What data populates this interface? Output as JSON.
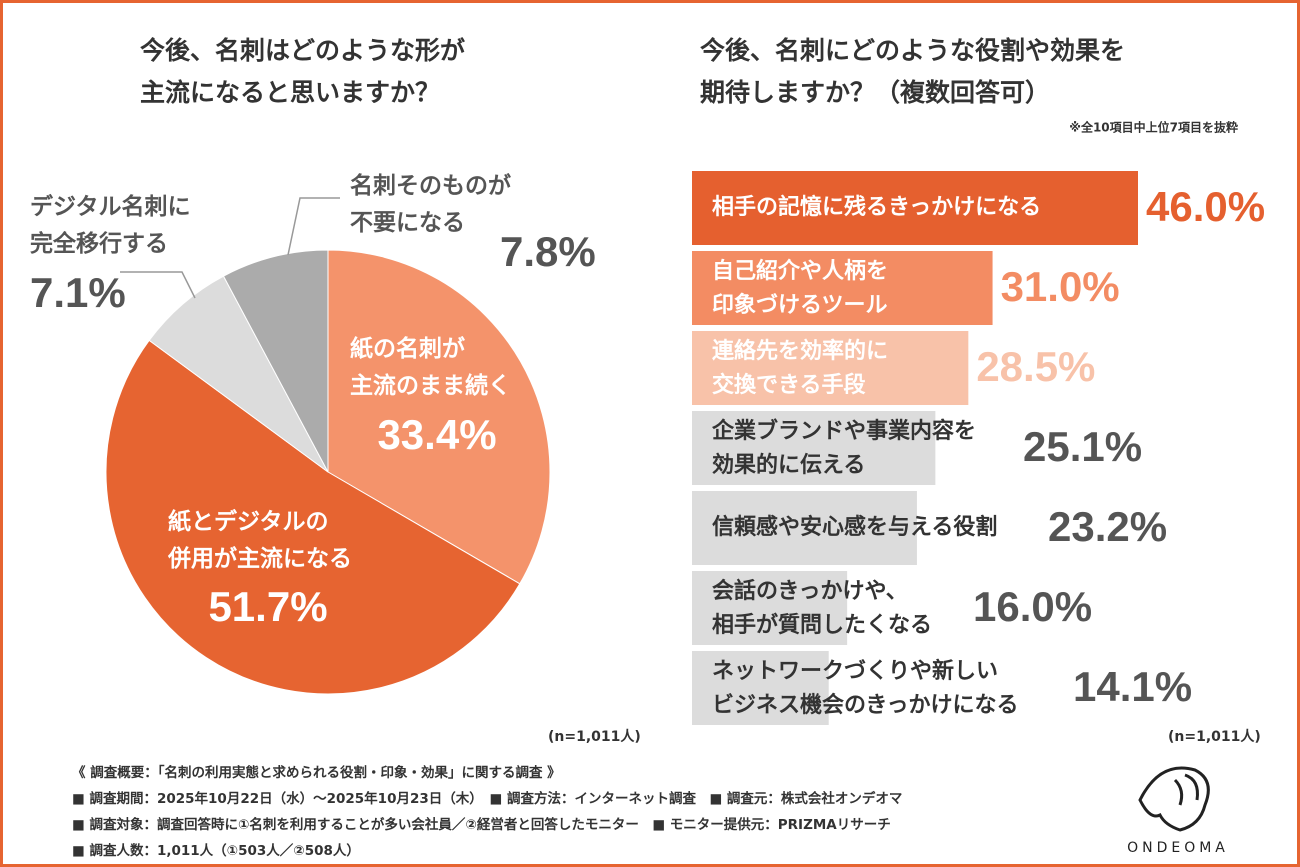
{
  "chart_data": [
    {
      "type": "pie",
      "title": "今後、名刺はどのような形が\n主流になると思いますか？",
      "categories": [
        "紙の名刺が\n主流のまま続く",
        "紙とデジタルの\n併用が主流になる",
        "デジタル名刺に\n完全移行する",
        "名刺そのものが\n不要になる"
      ],
      "values": [
        33.4,
        51.7,
        7.1,
        7.8
      ],
      "value_labels": [
        "33.4%",
        "51.7%",
        "7.1%",
        "7.8%"
      ],
      "colors": [
        "#F4936B",
        "#E66431",
        "#DCDCDC",
        "#ABABAB"
      ],
      "note": "(n=1,011人)"
    },
    {
      "type": "bar",
      "title": "今後、名刺にどのような役割や効果を\n期待しますか？（複数回答可）",
      "subtitle": "※全10項目中上位7項目を抜粋",
      "categories": [
        "相手の記憶に残るきっかけになる",
        "自己紹介や人柄を\n印象づけるツール",
        "連絡先を効率的に\n交換できる手段",
        "企業ブランドや事業内容を\n効果的に伝える",
        "信頼感や安心感を与える役割",
        "会話のきっかけや、\n相手が質問したくなる",
        "ネットワークづくりや新しい\nビジネス機会のきっかけになる"
      ],
      "values": [
        46.0,
        31.0,
        28.5,
        25.1,
        23.2,
        16.0,
        14.1
      ],
      "value_labels": [
        "46.0%",
        "31.0%",
        "28.5%",
        "25.1%",
        "23.2%",
        "16.0%",
        "14.1%"
      ],
      "colors": [
        "#E5602F",
        "#F38C63",
        "#F8C2A9",
        "#DCDCDC",
        "#DCDCDC",
        "#DCDCDC",
        "#DCDCDC"
      ],
      "label_colors": [
        "#E5602F",
        "#F38C63",
        "#F8C2A9",
        "#555555",
        "#555555",
        "#555555",
        "#555555"
      ],
      "note": "(n=1,011人)"
    }
  ],
  "footer": [
    "《 調査概要：「名刺の利用実態と求められる役割・印象・効果」に関する調査 》",
    "■ 調査期間：2025年10月22日（水）～2025年10月23日（木）　■ 調査方法：インターネット調査　■ 調査元：株式会社オンデオマ",
    "■ 調査対象：調査回答時に①名刺を利用することが多い会社員／②経営者と回答したモニター　■ モニター提供元：PRIZMAリサーチ",
    "■ 調査人数：1,011人（①503人／②508人）"
  ],
  "logo": "ONDEOMA"
}
